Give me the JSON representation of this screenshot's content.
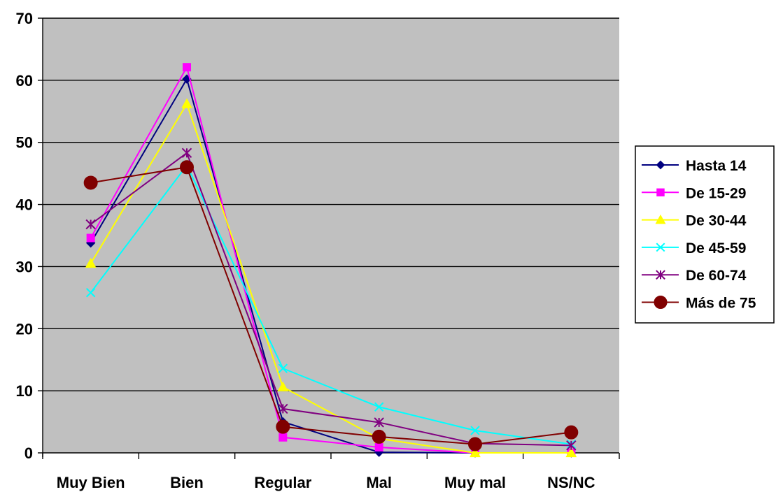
{
  "chart_data": {
    "type": "line",
    "title": "",
    "xlabel": "",
    "ylabel": "",
    "categories": [
      "Muy Bien",
      "Bien",
      "Regular",
      "Mal",
      "Muy mal",
      "NS/NC"
    ],
    "ylim": [
      0,
      70
    ],
    "yticks": [
      0,
      10,
      20,
      30,
      40,
      50,
      60,
      70
    ],
    "grid": true,
    "plot_background": "#C0C0C0",
    "legend_position": "right",
    "series": [
      {
        "name": "Hasta 14",
        "color": "#000080",
        "marker": "diamond",
        "values": [
          33.8,
          60.2,
          5.0,
          0.1,
          0.0,
          0.0
        ]
      },
      {
        "name": "De 15-29",
        "color": "#FF00FF",
        "marker": "square",
        "values": [
          34.6,
          62.1,
          2.5,
          0.9,
          0.0,
          0.0
        ]
      },
      {
        "name": "De 30-44",
        "color": "#FFFF00",
        "marker": "triangle",
        "values": [
          30.5,
          56.2,
          10.6,
          2.3,
          0.0,
          0.0
        ]
      },
      {
        "name": "De 45-59",
        "color": "#00FFFF",
        "marker": "x",
        "values": [
          25.8,
          46.3,
          13.6,
          7.4,
          3.6,
          1.4
        ]
      },
      {
        "name": "De 60-74",
        "color": "#800080",
        "marker": "asterisk",
        "values": [
          36.8,
          48.3,
          7.1,
          4.9,
          1.5,
          1.2
        ]
      },
      {
        "name": "Más de 75",
        "color": "#800000",
        "marker": "circle",
        "values": [
          43.5,
          46.0,
          4.2,
          2.6,
          1.4,
          3.3
        ]
      }
    ]
  }
}
